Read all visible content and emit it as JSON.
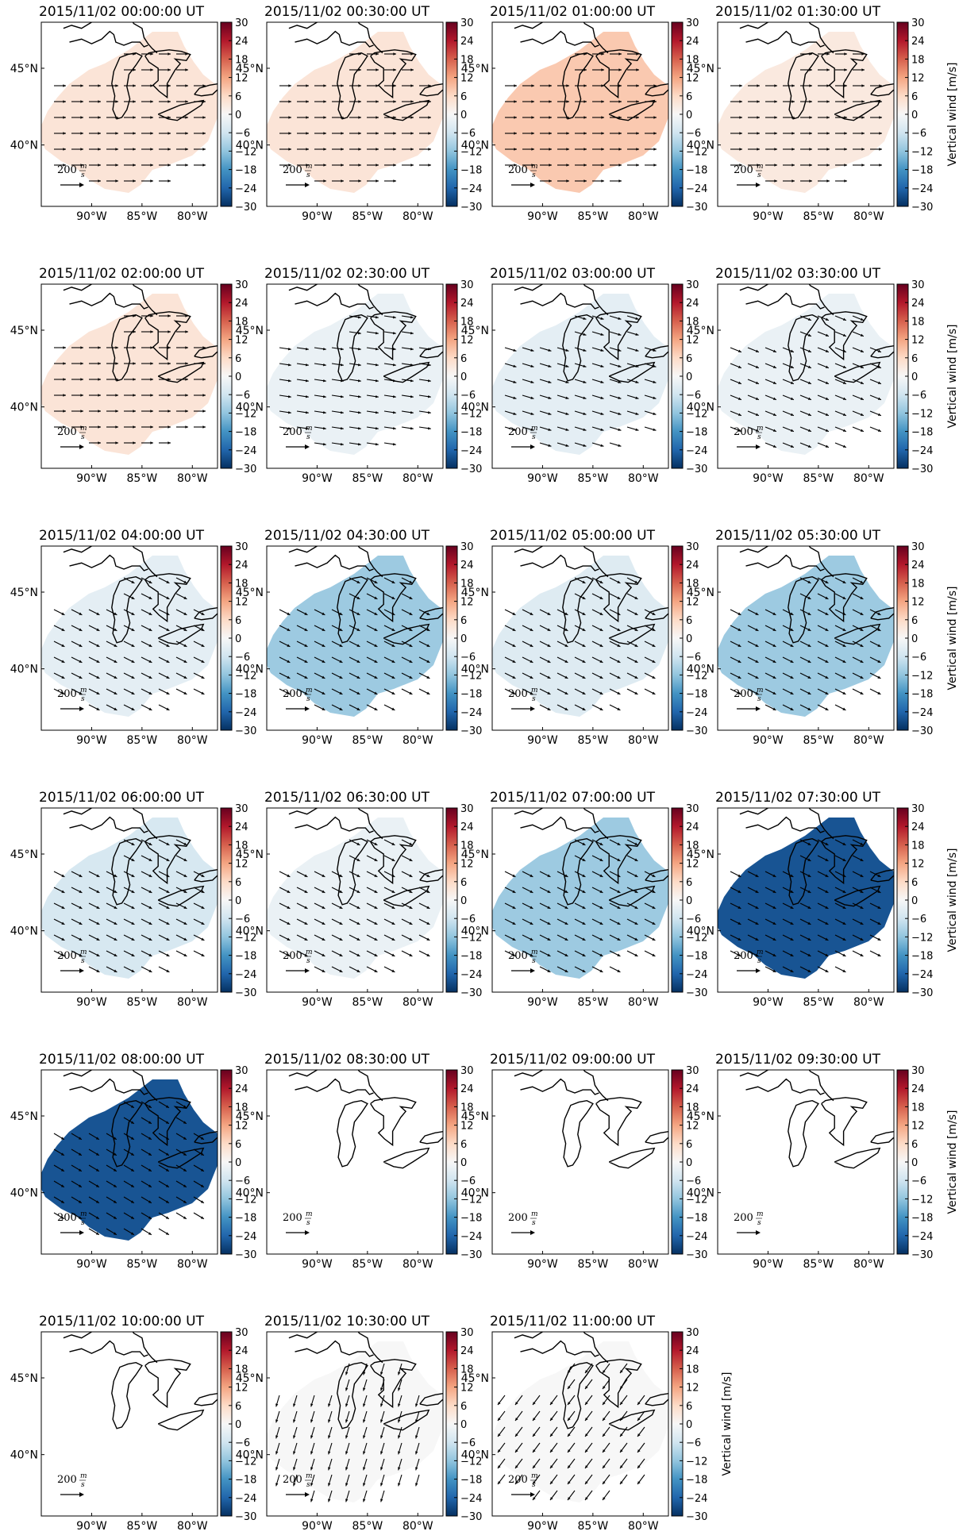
{
  "figure": {
    "colorbar": {
      "ticks": [
        "30",
        "24",
        "18",
        "12",
        "6",
        "0",
        "−6",
        "−12",
        "−18",
        "−24",
        "−30"
      ],
      "range": [
        -30,
        30
      ],
      "label": "Vertical wind [m/s]",
      "colors": [
        "#053061",
        "#2166ac",
        "#4393c3",
        "#92c5de",
        "#d1e5f0",
        "#f7f7f7",
        "#fddbc7",
        "#f4a582",
        "#d6604d",
        "#b2182b",
        "#67001f"
      ]
    },
    "axes": {
      "lon_ticks": [
        "90°W",
        "85°W",
        "80°W"
      ],
      "lat_ticks": [
        "45°N",
        "40°N"
      ]
    },
    "scale_label": "200",
    "scale_unit_num": "m",
    "scale_unit_den": "s",
    "panels": [
      {
        "title": "2015/11/02 00:00:00 UT",
        "vw": 4,
        "u": 1,
        "v": 0,
        "extent": "full"
      },
      {
        "title": "2015/11/02 00:30:00 UT",
        "vw": 4,
        "u": 1,
        "v": 0,
        "extent": "full"
      },
      {
        "title": "2015/11/02 01:00:00 UT",
        "vw": 8,
        "u": 1,
        "v": 0,
        "extent": "full"
      },
      {
        "title": "2015/11/02 01:30:00 UT",
        "vw": 3,
        "u": 1,
        "v": 0,
        "extent": "full"
      },
      {
        "title": "2015/11/02 02:00:00 UT",
        "vw": 4,
        "u": 1,
        "v": 0,
        "extent": "full"
      },
      {
        "title": "2015/11/02 02:30:00 UT",
        "vw": -2,
        "u": 1,
        "v": -0.15,
        "extent": "full"
      },
      {
        "title": "2015/11/02 03:00:00 UT",
        "vw": -3,
        "u": 1,
        "v": -0.3,
        "extent": "full"
      },
      {
        "title": "2015/11/02 03:30:00 UT",
        "vw": -2,
        "u": 1,
        "v": -0.4,
        "extent": "full"
      },
      {
        "title": "2015/11/02 04:00:00 UT",
        "vw": -3,
        "u": 1,
        "v": -0.5,
        "extent": "full"
      },
      {
        "title": "2015/11/02 04:30:00 UT",
        "vw": -11,
        "u": 1,
        "v": -0.5,
        "extent": "full"
      },
      {
        "title": "2015/11/02 05:00:00 UT",
        "vw": -4,
        "u": 1,
        "v": -0.5,
        "extent": "full"
      },
      {
        "title": "2015/11/02 05:30:00 UT",
        "vw": -11,
        "u": 1,
        "v": -0.5,
        "extent": "full"
      },
      {
        "title": "2015/11/02 06:00:00 UT",
        "vw": -5,
        "u": 1,
        "v": -0.5,
        "extent": "full"
      },
      {
        "title": "2015/11/02 06:30:00 UT",
        "vw": -2,
        "u": 1,
        "v": -0.5,
        "extent": "full"
      },
      {
        "title": "2015/11/02 07:00:00 UT",
        "vw": -11,
        "u": 1,
        "v": -0.5,
        "extent": "full"
      },
      {
        "title": "2015/11/02 07:30:00 UT",
        "vw": -26,
        "u": 1,
        "v": -0.5,
        "extent": "full"
      },
      {
        "title": "2015/11/02 08:00:00 UT",
        "vw": -26,
        "u": 1,
        "v": -0.6,
        "extent": "full"
      },
      {
        "title": "2015/11/02 08:30:00 UT",
        "vw": null,
        "u": 0,
        "v": 0,
        "extent": "none"
      },
      {
        "title": "2015/11/02 09:00:00 UT",
        "vw": null,
        "u": 0,
        "v": 0,
        "extent": "none"
      },
      {
        "title": "2015/11/02 09:30:00 UT",
        "vw": null,
        "u": 0,
        "v": 0,
        "extent": "none"
      },
      {
        "title": "2015/11/02 10:00:00 UT",
        "vw": null,
        "u": 0,
        "v": 0,
        "extent": "none"
      },
      {
        "title": "2015/11/02 10:30:00 UT",
        "vw": 0,
        "u": -0.3,
        "v": -1,
        "extent": "full"
      },
      {
        "title": "2015/11/02 11:00:00 UT",
        "vw": 0,
        "u": -0.6,
        "v": -0.8,
        "extent": "full"
      }
    ]
  }
}
